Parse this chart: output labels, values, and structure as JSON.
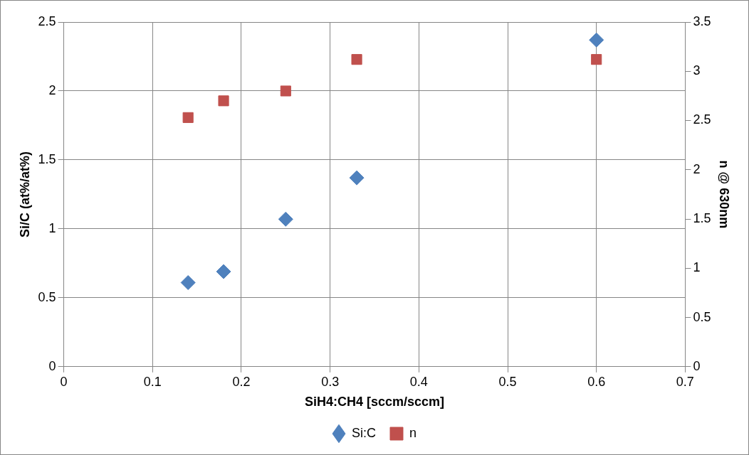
{
  "chart_data": {
    "type": "scatter",
    "xlabel": "SiH4:CH4 [sccm/sccm]",
    "ylabel": "Si/C (at%/at%)",
    "y2label": "n @ 630nm",
    "series": [
      {
        "name": "Si:C",
        "color": "#4f81bd",
        "marker": "diamond",
        "x": [
          0.14,
          0.18,
          0.25,
          0.33,
          0.6
        ],
        "values": [
          0.61,
          0.69,
          1.07,
          1.37,
          2.37
        ]
      },
      {
        "name": "n",
        "color": "#c0504d",
        "marker": "square",
        "axis": "y2",
        "x": [
          0.14,
          0.18,
          0.25,
          0.33,
          0.6
        ],
        "values": [
          2.53,
          2.7,
          2.8,
          3.12,
          3.12
        ]
      }
    ],
    "xlim": [
      0,
      0.7
    ],
    "xticks": [
      0,
      0.1,
      0.2,
      0.3,
      0.4,
      0.5,
      0.6,
      0.7
    ],
    "ylim": [
      0,
      2.5
    ],
    "yticks": [
      0,
      0.5,
      1,
      1.5,
      2,
      2.5
    ],
    "y2lim": [
      0,
      3.5
    ],
    "y2ticks": [
      0,
      0.5,
      1,
      1.5,
      2,
      2.5,
      3,
      3.5
    ],
    "grid": true,
    "legend": "bottom"
  }
}
